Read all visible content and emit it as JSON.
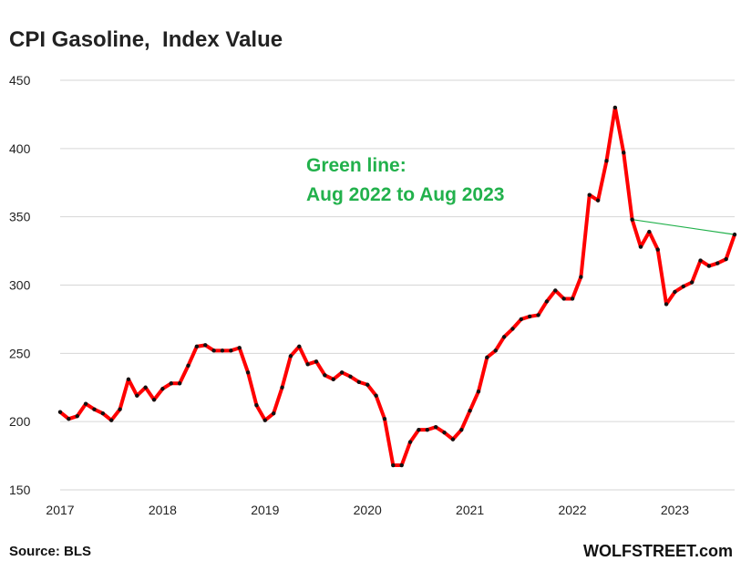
{
  "chart_data": {
    "type": "line",
    "title": "CPI Gasoline,  Index Value",
    "xlabel": "",
    "ylabel": "",
    "ylim": [
      150,
      450
    ],
    "yticks": [
      150,
      200,
      250,
      300,
      350,
      400,
      450
    ],
    "xticks": [
      "2017",
      "2018",
      "2019",
      "2020",
      "2021",
      "2022",
      "2023"
    ],
    "grid": "horizontal",
    "series": [
      {
        "color": "#ff0000",
        "marker_color": "#111111",
        "start": "2017-01",
        "frequency": "monthly",
        "values": [
          207,
          202,
          204,
          213,
          209,
          206,
          201,
          209,
          231,
          219,
          225,
          216,
          224,
          228,
          228,
          241,
          255,
          256,
          252,
          252,
          252,
          254,
          236,
          212,
          201,
          206,
          225,
          248,
          255,
          242,
          244,
          234,
          231,
          236,
          233,
          229,
          227,
          219,
          202,
          168,
          168,
          185,
          194,
          194,
          196,
          192,
          187,
          194,
          208,
          222,
          247,
          252,
          262,
          268,
          275,
          277,
          278,
          288,
          296,
          290,
          290,
          306,
          366,
          362,
          391,
          430,
          397,
          348,
          328,
          339,
          326,
          286,
          295,
          299,
          302,
          318,
          314,
          316,
          319,
          337
        ]
      },
      {
        "color": "#22b14c",
        "points": [
          {
            "x": "2022-08",
            "y": 348
          },
          {
            "x": "2023-08",
            "y": 337
          }
        ]
      }
    ],
    "annotation": [
      "Green line:",
      "Aug 2022 to Aug 2023"
    ]
  },
  "footer": {
    "source": "Source: BLS",
    "brand": "WOLFSTREET.com"
  }
}
